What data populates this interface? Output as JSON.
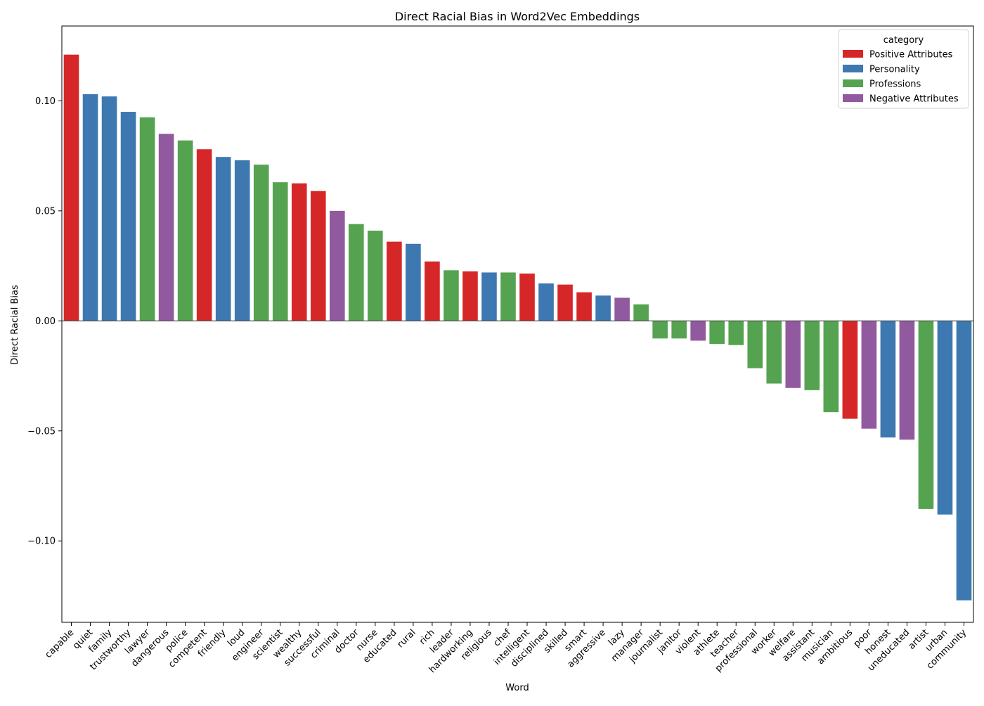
{
  "chart_data": {
    "type": "bar",
    "title": "Direct Racial Bias in Word2Vec Embeddings",
    "xlabel": "Word",
    "ylabel": "Direct Racial Bias",
    "ylim": [
      -0.137,
      0.134
    ],
    "yticks": [
      -0.1,
      -0.05,
      0.0,
      0.05,
      0.1
    ],
    "ytick_labels": [
      "−0.10",
      "−0.05",
      "0.00",
      "0.05",
      "0.10"
    ],
    "grid": false,
    "legend": {
      "title": "category",
      "placement": "top-right",
      "entries": [
        {
          "name": "Positive Attributes",
          "color": "#d62728"
        },
        {
          "name": "Personality",
          "color": "#3d78b0"
        },
        {
          "name": "Professions",
          "color": "#55a350"
        },
        {
          "name": "Negative Attributes",
          "color": "#925a9e"
        }
      ]
    },
    "categories": [
      "capable",
      "quiet",
      "family",
      "trustworthy",
      "lawyer",
      "dangerous",
      "police",
      "competent",
      "friendly",
      "loud",
      "engineer",
      "scientist",
      "wealthy",
      "successful",
      "criminal",
      "doctor",
      "nurse",
      "educated",
      "rural",
      "rich",
      "leader",
      "hardworking",
      "religious",
      "chef",
      "intelligent",
      "disciplined",
      "skilled",
      "smart",
      "aggressive",
      "lazy",
      "manager",
      "journalist",
      "janitor",
      "violent",
      "athlete",
      "teacher",
      "professional",
      "worker",
      "welfare",
      "assistant",
      "musician",
      "ambitious",
      "poor",
      "honest",
      "uneducated",
      "artist",
      "urban",
      "community"
    ],
    "values": [
      0.121,
      0.103,
      0.102,
      0.095,
      0.0925,
      0.085,
      0.082,
      0.078,
      0.0745,
      0.073,
      0.071,
      0.063,
      0.0625,
      0.059,
      0.05,
      0.044,
      0.041,
      0.036,
      0.035,
      0.027,
      0.023,
      0.0225,
      0.022,
      0.022,
      0.0215,
      0.017,
      0.0165,
      0.013,
      0.0115,
      0.0105,
      0.0075,
      -0.008,
      -0.008,
      -0.009,
      -0.0105,
      -0.011,
      -0.0215,
      -0.0285,
      -0.0305,
      -0.0315,
      -0.0415,
      -0.0445,
      -0.049,
      -0.053,
      -0.054,
      -0.0855,
      -0.088,
      -0.127
    ],
    "series_category": [
      "Positive Attributes",
      "Personality",
      "Personality",
      "Personality",
      "Professions",
      "Negative Attributes",
      "Professions",
      "Positive Attributes",
      "Personality",
      "Personality",
      "Professions",
      "Professions",
      "Positive Attributes",
      "Positive Attributes",
      "Negative Attributes",
      "Professions",
      "Professions",
      "Positive Attributes",
      "Personality",
      "Positive Attributes",
      "Professions",
      "Positive Attributes",
      "Personality",
      "Professions",
      "Positive Attributes",
      "Personality",
      "Positive Attributes",
      "Positive Attributes",
      "Personality",
      "Negative Attributes",
      "Professions",
      "Professions",
      "Professions",
      "Negative Attributes",
      "Professions",
      "Professions",
      "Professions",
      "Professions",
      "Negative Attributes",
      "Professions",
      "Professions",
      "Positive Attributes",
      "Negative Attributes",
      "Personality",
      "Negative Attributes",
      "Professions",
      "Personality",
      "Personality"
    ]
  }
}
